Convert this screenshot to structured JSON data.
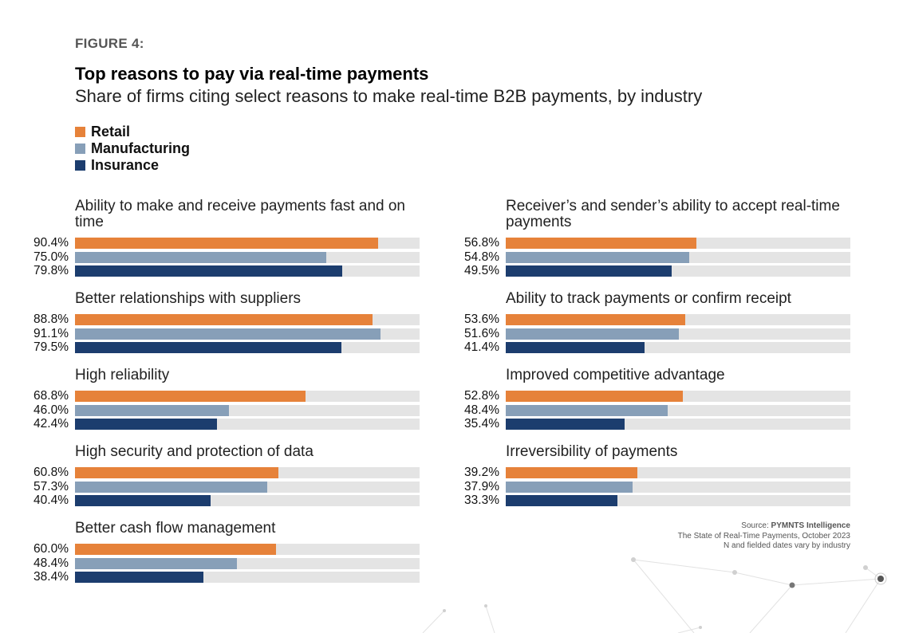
{
  "figure_label": "FIGURE 4:",
  "title": "Top reasons to pay via real-time payments",
  "subtitle": "Share of firms citing select reasons to make real-time B2B payments, by industry",
  "source": {
    "prefix": "Source: ",
    "org": "PYMNTS Intelligence",
    "line2": "The State of Real-Time Payments, October 2023",
    "line3": "N and fielded dates vary by industry"
  },
  "colors": {
    "Retail": "#e6823a",
    "Manufacturing": "#879fb8",
    "Insurance": "#1c3d6e",
    "track": "#e4e4e4"
  },
  "chart_data": {
    "type": "bar",
    "orientation": "horizontal",
    "unit": "%",
    "xlim": [
      0,
      100
    ],
    "legend": [
      "Retail",
      "Manufacturing",
      "Insurance"
    ],
    "legend_placement": "top-left",
    "categories": [
      "Ability to make and receive payments fast and on time",
      "Better relationships with suppliers",
      "High reliability",
      "High security and protection of data",
      "Better cash flow management",
      "Receiver’s and sender’s ability to accept real-time payments",
      "Ability to track payments or confirm receipt",
      "Improved competitive advantage",
      "Irreversibility of payments"
    ],
    "series": [
      {
        "name": "Retail",
        "values": [
          90.4,
          88.8,
          68.8,
          60.8,
          60.0,
          56.8,
          53.6,
          52.8,
          39.2
        ]
      },
      {
        "name": "Manufacturing",
        "values": [
          75.0,
          91.1,
          46.0,
          57.3,
          48.4,
          54.8,
          51.6,
          48.4,
          37.9
        ]
      },
      {
        "name": "Insurance",
        "values": [
          79.8,
          79.5,
          42.4,
          40.4,
          38.4,
          49.5,
          41.4,
          35.4,
          33.3
        ]
      }
    ]
  }
}
